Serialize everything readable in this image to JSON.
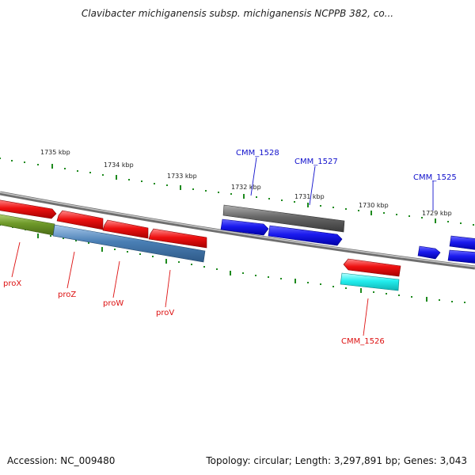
{
  "title": "Clavibacter michiganensis subsp. michiganensis NCPPB 382, co...",
  "accession_text": "Accession: NC_009480",
  "topology_text": "Topology: circular; Length: 3,297,891 bp; Genes: 3,043",
  "colors": {
    "backbone": "#8a8a8a",
    "tick": "#1e8a1e",
    "red_gene": "#ee1111",
    "blue_gene": "#1a1aee",
    "grey_gene": "#666666",
    "olive_gene": "#6f9a2a",
    "steel_gene": "#4a7fb5",
    "cyan_gene": "#22eeee",
    "red_label": "#dd1111",
    "blue_label": "#1111cc"
  },
  "ticks": {
    "outer_labels": [
      "1735 kbp",
      "1734 kbp",
      "1733 kbp",
      "1732 kbp",
      "1731 kbp",
      "1730 kbp",
      "1729 kbp"
    ]
  },
  "genes": {
    "proX": "proX",
    "proZ": "proZ",
    "proW": "proW",
    "proV": "proV",
    "cmm1528": "CMM_1528",
    "cmm1527": "CMM_1527",
    "cmm1525": "CMM_1525",
    "cmm1526": "CMM_1526"
  }
}
